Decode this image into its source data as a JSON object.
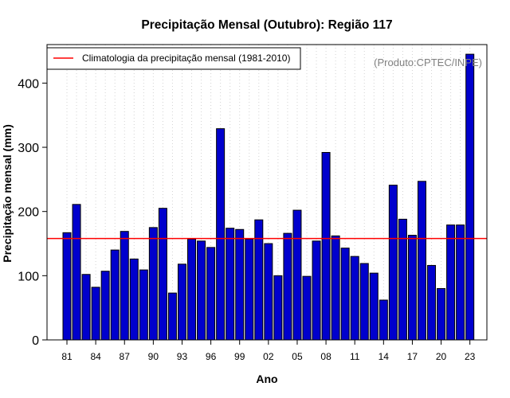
{
  "chart_data": {
    "type": "bar",
    "title": "Precipitação Mensal (Outubro): Região 117",
    "xlabel": "Ano",
    "ylabel": "Precipitação mensal (mm)",
    "ylim": [
      0,
      460
    ],
    "yticks": [
      0,
      100,
      200,
      300,
      400
    ],
    "grid": "vertical dotted",
    "categories": [
      "81",
      "82",
      "83",
      "84",
      "85",
      "86",
      "87",
      "88",
      "89",
      "90",
      "91",
      "92",
      "93",
      "94",
      "95",
      "96",
      "97",
      "98",
      "99",
      "00",
      "01",
      "02",
      "03",
      "04",
      "05",
      "06",
      "07",
      "08",
      "09",
      "10",
      "11",
      "12",
      "13",
      "14",
      "15",
      "16",
      "17",
      "18",
      "19",
      "20",
      "21",
      "22",
      "23"
    ],
    "xtick_labels": [
      "81",
      "84",
      "87",
      "90",
      "93",
      "96",
      "99",
      "02",
      "05",
      "08",
      "11",
      "14",
      "17",
      "20",
      "23"
    ],
    "series": [
      {
        "name": "Precipitação mensal",
        "color": "#0000cd",
        "values": [
          167,
          211,
          102,
          82,
          107,
          140,
          169,
          126,
          109,
          175,
          205,
          73,
          118,
          157,
          154,
          144,
          329,
          174,
          172,
          157,
          187,
          150,
          100,
          166,
          202,
          99,
          154,
          292,
          162,
          143,
          130,
          119,
          104,
          62,
          241,
          188,
          163,
          247,
          116,
          80,
          179,
          179,
          445
        ]
      }
    ],
    "reference_line": {
      "label": "Climatologia da precipitação mensal (1981-2010)",
      "value": 158,
      "color": "#ff0000"
    },
    "legend_position": "top-left",
    "credit": "(Produto:CPTEC/INPE)"
  }
}
